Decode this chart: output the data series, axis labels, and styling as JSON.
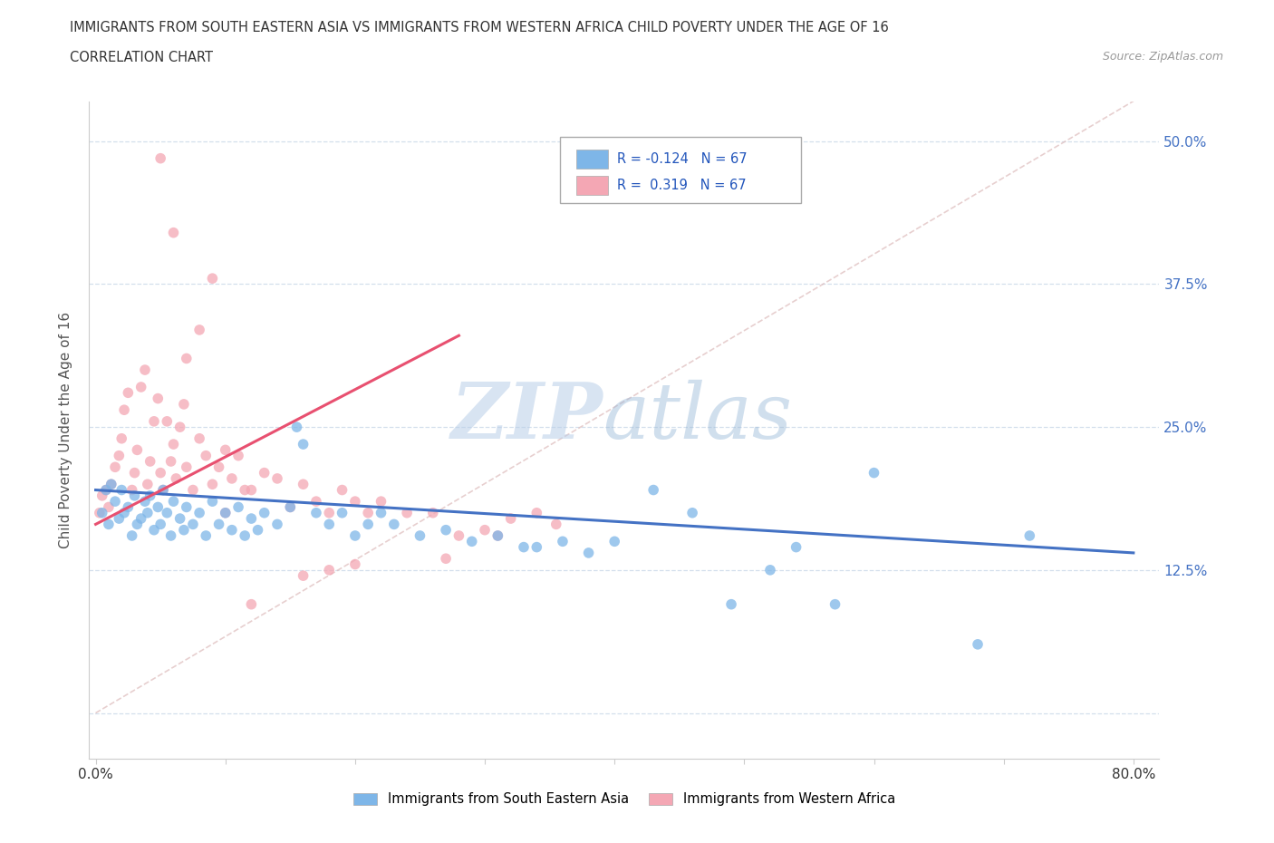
{
  "title_line1": "IMMIGRANTS FROM SOUTH EASTERN ASIA VS IMMIGRANTS FROM WESTERN AFRICA CHILD POVERTY UNDER THE AGE OF 16",
  "title_line2": "CORRELATION CHART",
  "source_text": "Source: ZipAtlas.com",
  "ylabel": "Child Poverty Under the Age of 16",
  "xlim": [
    -0.005,
    0.82
  ],
  "ylim": [
    -0.04,
    0.535
  ],
  "ytick_values": [
    0.0,
    0.125,
    0.25,
    0.375,
    0.5
  ],
  "ytick_labels": [
    "",
    "12.5%",
    "25.0%",
    "37.5%",
    "50.0%"
  ],
  "blue_color": "#7EB6E8",
  "pink_color": "#F4A7B4",
  "blue_line_color": "#4472C4",
  "pink_line_color": "#E85070",
  "pink_dash_color": "#DDBBBB",
  "grid_color": "#C8D8E8",
  "watermark_text": "ZIPatlas",
  "watermark_color": "#D0DFF0",
  "legend_R1": "-0.124",
  "legend_N1": "67",
  "legend_R2": "0.319",
  "legend_N2": "67",
  "blue_trend_x": [
    0.0,
    0.8
  ],
  "blue_trend_y": [
    0.195,
    0.14
  ],
  "pink_trend_x": [
    0.0,
    0.28
  ],
  "pink_trend_y": [
    0.165,
    0.33
  ],
  "blue_scatter_x": [
    0.005,
    0.008,
    0.01,
    0.012,
    0.015,
    0.018,
    0.02,
    0.022,
    0.025,
    0.028,
    0.03,
    0.032,
    0.035,
    0.038,
    0.04,
    0.042,
    0.045,
    0.048,
    0.05,
    0.052,
    0.055,
    0.058,
    0.06,
    0.065,
    0.068,
    0.07,
    0.075,
    0.08,
    0.085,
    0.09,
    0.095,
    0.1,
    0.105,
    0.11,
    0.115,
    0.12,
    0.125,
    0.13,
    0.14,
    0.15,
    0.155,
    0.16,
    0.17,
    0.18,
    0.19,
    0.2,
    0.21,
    0.22,
    0.23,
    0.25,
    0.27,
    0.29,
    0.31,
    0.33,
    0.34,
    0.36,
    0.38,
    0.4,
    0.43,
    0.46,
    0.49,
    0.52,
    0.54,
    0.57,
    0.6,
    0.68,
    0.72
  ],
  "blue_scatter_y": [
    0.175,
    0.195,
    0.165,
    0.2,
    0.185,
    0.17,
    0.195,
    0.175,
    0.18,
    0.155,
    0.19,
    0.165,
    0.17,
    0.185,
    0.175,
    0.19,
    0.16,
    0.18,
    0.165,
    0.195,
    0.175,
    0.155,
    0.185,
    0.17,
    0.16,
    0.18,
    0.165,
    0.175,
    0.155,
    0.185,
    0.165,
    0.175,
    0.16,
    0.18,
    0.155,
    0.17,
    0.16,
    0.175,
    0.165,
    0.18,
    0.25,
    0.235,
    0.175,
    0.165,
    0.175,
    0.155,
    0.165,
    0.175,
    0.165,
    0.155,
    0.16,
    0.15,
    0.155,
    0.145,
    0.145,
    0.15,
    0.14,
    0.15,
    0.195,
    0.175,
    0.095,
    0.125,
    0.145,
    0.095,
    0.21,
    0.06,
    0.155
  ],
  "pink_scatter_x": [
    0.003,
    0.005,
    0.008,
    0.01,
    0.012,
    0.015,
    0.018,
    0.02,
    0.022,
    0.025,
    0.028,
    0.03,
    0.032,
    0.035,
    0.038,
    0.04,
    0.042,
    0.045,
    0.048,
    0.05,
    0.052,
    0.055,
    0.058,
    0.06,
    0.062,
    0.065,
    0.068,
    0.07,
    0.075,
    0.08,
    0.085,
    0.09,
    0.095,
    0.1,
    0.105,
    0.11,
    0.115,
    0.12,
    0.13,
    0.14,
    0.15,
    0.16,
    0.17,
    0.18,
    0.19,
    0.2,
    0.21,
    0.22,
    0.24,
    0.26,
    0.28,
    0.3,
    0.31,
    0.32,
    0.34,
    0.355,
    0.27,
    0.16,
    0.18,
    0.2,
    0.12,
    0.09,
    0.08,
    0.06,
    0.05,
    0.07,
    0.1
  ],
  "pink_scatter_y": [
    0.175,
    0.19,
    0.195,
    0.18,
    0.2,
    0.215,
    0.225,
    0.24,
    0.265,
    0.28,
    0.195,
    0.21,
    0.23,
    0.285,
    0.3,
    0.2,
    0.22,
    0.255,
    0.275,
    0.21,
    0.195,
    0.255,
    0.22,
    0.235,
    0.205,
    0.25,
    0.27,
    0.215,
    0.195,
    0.24,
    0.225,
    0.2,
    0.215,
    0.23,
    0.205,
    0.225,
    0.195,
    0.195,
    0.21,
    0.205,
    0.18,
    0.2,
    0.185,
    0.175,
    0.195,
    0.185,
    0.175,
    0.185,
    0.175,
    0.175,
    0.155,
    0.16,
    0.155,
    0.17,
    0.175,
    0.165,
    0.135,
    0.12,
    0.125,
    0.13,
    0.095,
    0.38,
    0.335,
    0.42,
    0.485,
    0.31,
    0.175
  ]
}
